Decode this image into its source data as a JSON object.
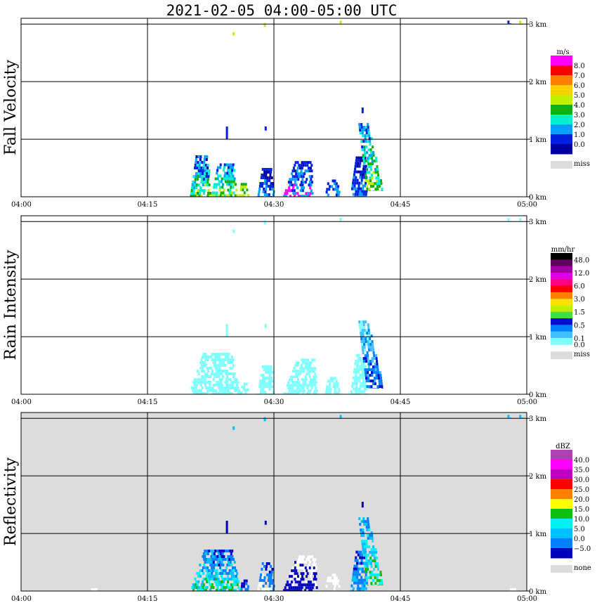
{
  "title": "2021-02-05   04:00-05:00 UTC",
  "x_ticks": [
    "04:00",
    "04:15",
    "04:30",
    "04:45",
    "05:00"
  ],
  "y_ticks": [
    "0 km",
    "1 km",
    "2 km",
    "3 km"
  ],
  "colors": {
    "frame": "#000000",
    "miss": "#dcdcdc",
    "background": "#ffffff"
  },
  "chart_data": [
    {
      "type": "heatmap",
      "title": "Fall Velocity",
      "x_range": [
        "04:00",
        "05:00"
      ],
      "y_range_km": [
        0,
        3.1
      ],
      "grid": true,
      "colorbar": {
        "unit": "m/s",
        "labels": [
          "8.0",
          "7.0",
          "6.0",
          "5.0",
          "4.0",
          "3.0",
          "2.0",
          "1.0",
          "0.0"
        ],
        "colors": [
          "#ff00ff",
          "#ff0000",
          "#ff8000",
          "#ffd000",
          "#c0f000",
          "#10b010",
          "#00f0d0",
          "#00a0ff",
          "#0020e0",
          "#0000a0"
        ],
        "miss_label": "miss"
      },
      "echoes": [
        {
          "t_start": 20.0,
          "t_end": 22.5,
          "h_base": 0.0,
          "h_top": 0.72,
          "tilt": 0.8,
          "colors": [
            "#0000a0",
            "#0020e0",
            "#00a0ff",
            "#00f0d0",
            "#10b010",
            "#c0f000"
          ]
        },
        {
          "t_start": 22.5,
          "t_end": 25.8,
          "h_base": 0.0,
          "h_top": 0.58,
          "tilt": 0.7,
          "colors": [
            "#0020e0",
            "#00a0ff",
            "#00f0d0",
            "#10b010",
            "#c0f000"
          ]
        },
        {
          "t_start": 25.8,
          "t_end": 27.0,
          "h_base": 0.0,
          "h_top": 0.24,
          "tilt": 0.6,
          "colors": [
            "#10b010",
            "#c0f000"
          ]
        },
        {
          "t_start": 28.0,
          "t_end": 30.0,
          "h_base": 0.0,
          "h_top": 0.5,
          "tilt": 0.8,
          "colors": [
            "#0000a0",
            "#0020e0",
            "#00a0ff"
          ]
        },
        {
          "t_start": 31.0,
          "t_end": 34.5,
          "h_base": 0.0,
          "h_top": 0.62,
          "tilt": 1.2,
          "colors": [
            "#0000a0",
            "#0020e0",
            "#00a0ff",
            "#ff00ff"
          ]
        },
        {
          "t_start": 36.0,
          "t_end": 37.8,
          "h_base": 0.0,
          "h_top": 0.3,
          "tilt": 0.6,
          "colors": [
            "#0020e0",
            "#00a0ff"
          ]
        },
        {
          "t_start": 39.0,
          "t_end": 41.0,
          "h_base": 0.0,
          "h_top": 0.7,
          "tilt": 1.0,
          "colors": [
            "#0000a0",
            "#0020e0",
            "#00a0ff"
          ]
        },
        {
          "t_start": 41.0,
          "t_end": 43.0,
          "h_base": 0.1,
          "h_top": 1.28,
          "tilt": -1.4,
          "colors": [
            "#0020e0",
            "#00a0ff",
            "#00f0d0",
            "#10b010",
            "#c0f000"
          ]
        },
        {
          "t_start": 24.3,
          "t_end": 24.5,
          "h_base": 1.0,
          "h_top": 1.22,
          "tilt": 0,
          "colors": [
            "#0020e0"
          ]
        },
        {
          "t_start": 28.9,
          "t_end": 29.1,
          "h_base": 1.15,
          "h_top": 1.22,
          "tilt": 0,
          "colors": [
            "#0020e0"
          ]
        },
        {
          "t_start": 40.4,
          "t_end": 40.6,
          "h_base": 1.45,
          "h_top": 1.55,
          "tilt": 0,
          "colors": [
            "#0020e0"
          ]
        },
        {
          "t_start": 25.1,
          "t_end": 25.3,
          "h_base": 2.8,
          "h_top": 2.86,
          "tilt": 0,
          "colors": [
            "#c0f000"
          ]
        },
        {
          "t_start": 28.8,
          "t_end": 29.0,
          "h_base": 2.95,
          "h_top": 3.02,
          "tilt": 0,
          "colors": [
            "#c0f000"
          ]
        },
        {
          "t_start": 37.8,
          "t_end": 38.0,
          "h_base": 3.0,
          "h_top": 3.06,
          "tilt": 0,
          "colors": [
            "#c0f000"
          ]
        },
        {
          "t_start": 57.7,
          "t_end": 58.0,
          "h_base": 3.0,
          "h_top": 3.06,
          "tilt": 0,
          "colors": [
            "#0020e0"
          ]
        },
        {
          "t_start": 59.1,
          "t_end": 59.5,
          "h_base": 3.0,
          "h_top": 3.06,
          "tilt": 0,
          "colors": [
            "#c0f000"
          ]
        }
      ]
    },
    {
      "type": "heatmap",
      "title": "Rain Intensity",
      "x_range": [
        "04:00",
        "05:00"
      ],
      "y_range_km": [
        0,
        3.1
      ],
      "grid": true,
      "colorbar": {
        "unit": "mm/hr",
        "labels": [
          "48.0",
          "12.0",
          "6.0",
          "3.0",
          "1.5",
          "0.5",
          "0.1",
          "0.0"
        ],
        "label_slots": [
          0,
          2,
          4,
          6,
          8,
          10,
          12,
          13
        ],
        "colors": [
          "#000000",
          "#600060",
          "#a000a0",
          "#e000e0",
          "#ff0080",
          "#ff0000",
          "#ff8000",
          "#ffe000",
          "#c0f000",
          "#40e040",
          "#0010d0",
          "#0080ff",
          "#40c0ff",
          "#80ffff"
        ],
        "miss_label": "miss"
      },
      "echoes": [
        {
          "t_start": 19.8,
          "t_end": 26.0,
          "h_base": 0.0,
          "h_top": 0.72,
          "tilt": 0.8,
          "colors": [
            "#80ffff"
          ]
        },
        {
          "t_start": 26.0,
          "t_end": 27.0,
          "h_base": 0.0,
          "h_top": 0.2,
          "tilt": 0.4,
          "colors": [
            "#80ffff"
          ]
        },
        {
          "t_start": 28.0,
          "t_end": 30.0,
          "h_base": 0.0,
          "h_top": 0.5,
          "tilt": 0.8,
          "colors": [
            "#80ffff"
          ]
        },
        {
          "t_start": 31.0,
          "t_end": 35.0,
          "h_base": 0.0,
          "h_top": 0.62,
          "tilt": 1.2,
          "colors": [
            "#80ffff"
          ]
        },
        {
          "t_start": 36.0,
          "t_end": 37.8,
          "h_base": 0.0,
          "h_top": 0.3,
          "tilt": 0.6,
          "colors": [
            "#80ffff"
          ]
        },
        {
          "t_start": 39.0,
          "t_end": 41.0,
          "h_base": 0.0,
          "h_top": 0.7,
          "tilt": 1.0,
          "colors": [
            "#80ffff"
          ]
        },
        {
          "t_start": 41.0,
          "t_end": 43.0,
          "h_base": 0.1,
          "h_top": 1.28,
          "tilt": -1.4,
          "colors": [
            "#80ffff",
            "#40c0ff",
            "#0080ff",
            "#0010d0"
          ]
        },
        {
          "t_start": 24.3,
          "t_end": 24.5,
          "h_base": 1.0,
          "h_top": 1.22,
          "tilt": 0,
          "colors": [
            "#80ffff"
          ]
        },
        {
          "t_start": 28.9,
          "t_end": 29.1,
          "h_base": 1.15,
          "h_top": 1.22,
          "tilt": 0,
          "colors": [
            "#80ffff"
          ]
        },
        {
          "t_start": 25.1,
          "t_end": 25.3,
          "h_base": 2.8,
          "h_top": 2.86,
          "tilt": 0,
          "colors": [
            "#80ffff"
          ]
        },
        {
          "t_start": 28.8,
          "t_end": 29.0,
          "h_base": 2.95,
          "h_top": 3.02,
          "tilt": 0,
          "colors": [
            "#80ffff"
          ]
        },
        {
          "t_start": 37.8,
          "t_end": 38.0,
          "h_base": 3.0,
          "h_top": 3.06,
          "tilt": 0,
          "colors": [
            "#80ffff"
          ]
        },
        {
          "t_start": 57.7,
          "t_end": 58.0,
          "h_base": 3.0,
          "h_top": 3.06,
          "tilt": 0,
          "colors": [
            "#80ffff"
          ]
        },
        {
          "t_start": 59.1,
          "t_end": 59.5,
          "h_base": 3.0,
          "h_top": 3.06,
          "tilt": 0,
          "colors": [
            "#80ffff"
          ]
        }
      ]
    },
    {
      "type": "heatmap",
      "title": "Reflectivity",
      "x_range": [
        "04:00",
        "05:00"
      ],
      "y_range_km": [
        0,
        3.1
      ],
      "grid": true,
      "background": "miss",
      "colorbar": {
        "unit": "dBZ",
        "labels": [
          "40.0",
          "35.0",
          "30.0",
          "25.0",
          "20.0",
          "15.0",
          "10.0",
          "5.0",
          "0.0",
          "−5.0"
        ],
        "colors": [
          "#b040b0",
          "#ff00ff",
          "#c000c0",
          "#ff0000",
          "#ff8000",
          "#ffff00",
          "#10c010",
          "#00f0f0",
          "#00c0ff",
          "#0080ff",
          "#0000c0"
        ],
        "miss_label": "none"
      },
      "echoes": [
        {
          "t_start": 20.0,
          "t_end": 26.0,
          "h_base": 0.0,
          "h_top": 0.72,
          "tilt": 0.8,
          "colors": [
            "#0000c0",
            "#0080ff",
            "#00c0ff",
            "#00f0f0",
            "#10c010"
          ]
        },
        {
          "t_start": 26.0,
          "t_end": 27.0,
          "h_base": 0.0,
          "h_top": 0.2,
          "tilt": 0.4,
          "colors": [
            "#0000c0",
            "#0080ff"
          ]
        },
        {
          "t_start": 28.0,
          "t_end": 30.0,
          "h_base": 0.0,
          "h_top": 0.5,
          "tilt": 0.8,
          "colors": [
            "#0000c0",
            "#0080ff",
            "#ffffff"
          ]
        },
        {
          "t_start": 31.0,
          "t_end": 35.0,
          "h_base": 0.0,
          "h_top": 0.62,
          "tilt": 1.2,
          "colors": [
            "#ffffff",
            "#0000c0"
          ]
        },
        {
          "t_start": 36.0,
          "t_end": 37.8,
          "h_base": 0.0,
          "h_top": 0.3,
          "tilt": 0.6,
          "colors": [
            "#ffffff"
          ]
        },
        {
          "t_start": 39.0,
          "t_end": 41.0,
          "h_base": 0.0,
          "h_top": 0.7,
          "tilt": 1.0,
          "colors": [
            "#0000c0",
            "#0080ff",
            "#00c0ff"
          ]
        },
        {
          "t_start": 41.0,
          "t_end": 43.0,
          "h_base": 0.1,
          "h_top": 1.28,
          "tilt": -1.4,
          "colors": [
            "#0080ff",
            "#00c0ff",
            "#00f0f0",
            "#10c010"
          ]
        },
        {
          "t_start": 24.3,
          "t_end": 24.5,
          "h_base": 1.0,
          "h_top": 1.22,
          "tilt": 0,
          "colors": [
            "#0000c0"
          ]
        },
        {
          "t_start": 28.9,
          "t_end": 29.1,
          "h_base": 1.15,
          "h_top": 1.22,
          "tilt": 0,
          "colors": [
            "#0000c0"
          ]
        },
        {
          "t_start": 40.4,
          "t_end": 40.6,
          "h_base": 1.45,
          "h_top": 1.55,
          "tilt": 0,
          "colors": [
            "#0000c0"
          ]
        },
        {
          "t_start": 25.1,
          "t_end": 25.3,
          "h_base": 2.8,
          "h_top": 2.86,
          "tilt": 0,
          "colors": [
            "#00c0ff"
          ]
        },
        {
          "t_start": 28.8,
          "t_end": 29.0,
          "h_base": 2.95,
          "h_top": 3.02,
          "tilt": 0,
          "colors": [
            "#00c0ff"
          ]
        },
        {
          "t_start": 37.8,
          "t_end": 38.0,
          "h_base": 3.0,
          "h_top": 3.06,
          "tilt": 0,
          "colors": [
            "#00c0ff"
          ]
        },
        {
          "t_start": 57.7,
          "t_end": 58.0,
          "h_base": 3.0,
          "h_top": 3.06,
          "tilt": 0,
          "colors": [
            "#00c0ff"
          ]
        },
        {
          "t_start": 59.1,
          "t_end": 59.5,
          "h_base": 3.0,
          "h_top": 3.06,
          "tilt": 0,
          "colors": [
            "#00c0ff"
          ]
        },
        {
          "t_start": 8.3,
          "t_end": 9.5,
          "h_base": 0.0,
          "h_top": 0.05,
          "tilt": 0,
          "colors": [
            "#ffffff"
          ]
        },
        {
          "t_start": 58.0,
          "t_end": 59.3,
          "h_base": 0.0,
          "h_top": 0.05,
          "tilt": 0,
          "colors": [
            "#ffffff"
          ]
        }
      ]
    }
  ]
}
